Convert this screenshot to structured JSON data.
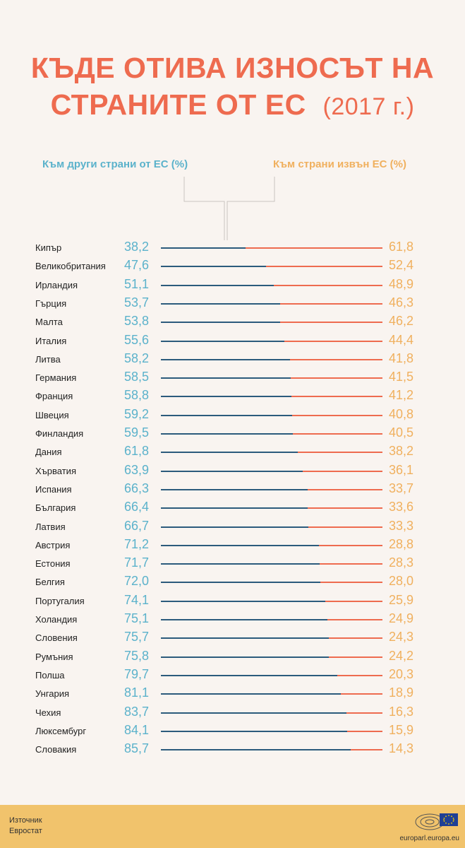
{
  "title": {
    "line1": "КЪДЕ ОТИВА ИЗНОСЪТ НА",
    "line2": "СТРАНИТЕ ОТ ЕС",
    "year": "(2017 г.)"
  },
  "legend": {
    "eu": "Към други страни от ЕС (%)",
    "non_eu": "Към страни извън ЕС (%)"
  },
  "colors": {
    "title": "#ee6b4f",
    "eu_text": "#5bb2cb",
    "non_eu_text": "#f0b05e",
    "eu_bar": "#2c5b7c",
    "non_eu_bar": "#ee6b4f",
    "background": "#f9f4f0",
    "footer": "#f1c36c"
  },
  "chart_data": {
    "type": "bar",
    "orientation": "horizontal-stacked",
    "categories": [
      "Кипър",
      "Великобритания",
      "Ирландия",
      "Гърция",
      "Малта",
      "Италия",
      "Литва",
      "Германия",
      "Франция",
      "Швеция",
      "Финландия",
      "Дания",
      "Хърватия",
      "Испания",
      "България",
      "Латвия",
      "Австрия",
      "Естония",
      "Белгия",
      "Португалия",
      "Холандия",
      "Словения",
      "Румъния",
      "Полша",
      "Унгария",
      "Чехия",
      "Люксембург",
      "Словакия"
    ],
    "series": [
      {
        "name": "Към други страни от ЕС (%)",
        "values": [
          38.2,
          47.6,
          51.1,
          53.7,
          53.8,
          55.6,
          58.2,
          58.5,
          58.8,
          59.2,
          59.5,
          61.8,
          63.9,
          66.3,
          66.4,
          66.7,
          71.2,
          71.7,
          72.0,
          74.1,
          75.1,
          75.7,
          75.8,
          79.7,
          81.1,
          83.7,
          84.1,
          85.7
        ]
      },
      {
        "name": "Към страни извън ЕС (%)",
        "values": [
          61.8,
          52.4,
          48.9,
          46.3,
          46.2,
          44.4,
          41.8,
          41.5,
          41.2,
          40.8,
          40.5,
          38.2,
          36.1,
          33.7,
          33.6,
          33.3,
          28.8,
          28.3,
          28.0,
          25.9,
          24.9,
          24.3,
          24.2,
          20.3,
          18.9,
          16.3,
          15.9,
          14.3
        ]
      }
    ],
    "labels_eu": [
      "38,2",
      "47,6",
      "51,1",
      "53,7",
      "53,8",
      "55,6",
      "58,2",
      "58,5",
      "58,8",
      "59,2",
      "59,5",
      "61,8",
      "63,9",
      "66,3",
      "66,4",
      "66,7",
      "71,2",
      "71,7",
      "72,0",
      "74,1",
      "75,1",
      "75,7",
      "75,8",
      "79,7",
      "81,1",
      "83,7",
      "84,1",
      "85,7"
    ],
    "labels_non_eu": [
      "61,8",
      "52,4",
      "48,9",
      "46,3",
      "46,2",
      "44,4",
      "41,8",
      "41,5",
      "41,2",
      "40,8",
      "40,5",
      "38,2",
      "36,1",
      "33,7",
      "33,6",
      "33,3",
      "28,8",
      "28,3",
      "28,0",
      "25,9",
      "24,9",
      "24,3",
      "24,2",
      "20,3",
      "18,9",
      "16,3",
      "15,9",
      "14,3"
    ],
    "xlim": [
      0,
      100
    ]
  },
  "footer": {
    "source_label": "Източник",
    "source_name": "Евростат",
    "site": "europarl.europa.eu"
  }
}
